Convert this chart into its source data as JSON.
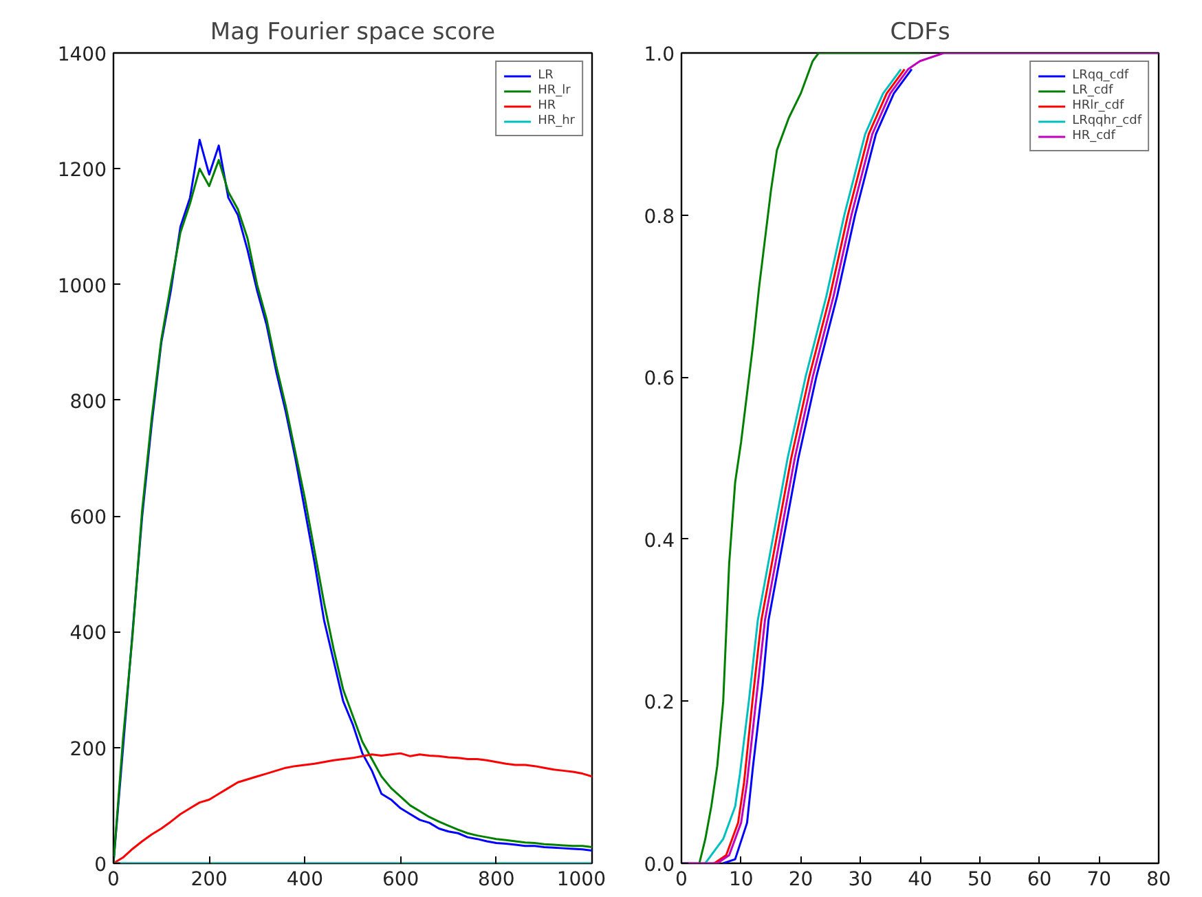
{
  "chart_data": [
    {
      "type": "line",
      "title": "Mag Fourier space score",
      "legend": "top right",
      "grid": false,
      "line_style": "solid",
      "marker": "none",
      "xlim": [
        0,
        1000
      ],
      "xticks": [
        0,
        200,
        400,
        600,
        800,
        1000
      ],
      "ylim": [
        0,
        1400
      ],
      "yticks": [
        0,
        200,
        400,
        600,
        800,
        1000,
        1200,
        1400
      ],
      "x": [
        0,
        20,
        40,
        60,
        80,
        100,
        120,
        140,
        160,
        180,
        200,
        220,
        240,
        260,
        280,
        300,
        320,
        340,
        360,
        380,
        400,
        420,
        440,
        460,
        480,
        500,
        520,
        540,
        560,
        580,
        600,
        620,
        640,
        660,
        680,
        700,
        720,
        740,
        760,
        780,
        800,
        820,
        840,
        860,
        880,
        900,
        920,
        940,
        960,
        980,
        1000
      ],
      "series": [
        {
          "name": "LR",
          "color": "#0000ff",
          "values": [
            0,
            200,
            400,
            600,
            760,
            900,
            990,
            1100,
            1150,
            1250,
            1190,
            1240,
            1150,
            1120,
            1060,
            990,
            930,
            850,
            780,
            700,
            610,
            520,
            420,
            350,
            280,
            240,
            190,
            160,
            120,
            110,
            95,
            85,
            75,
            70,
            60,
            55,
            52,
            45,
            42,
            38,
            35,
            34,
            32,
            30,
            30,
            28,
            27,
            26,
            25,
            24,
            22
          ]
        },
        {
          "name": "HR_lr",
          "color": "#008000",
          "values": [
            0,
            215,
            395,
            610,
            770,
            905,
            1000,
            1090,
            1140,
            1200,
            1170,
            1215,
            1160,
            1130,
            1080,
            1000,
            940,
            860,
            790,
            710,
            630,
            540,
            450,
            370,
            300,
            255,
            210,
            180,
            150,
            130,
            115,
            100,
            90,
            80,
            72,
            65,
            58,
            52,
            48,
            45,
            42,
            40,
            38,
            36,
            35,
            33,
            32,
            31,
            30,
            30,
            28
          ]
        },
        {
          "name": "HR",
          "color": "#ff0000",
          "values": [
            0,
            10,
            25,
            38,
            50,
            60,
            72,
            85,
            95,
            105,
            110,
            120,
            130,
            140,
            145,
            150,
            155,
            160,
            165,
            168,
            170,
            172,
            175,
            178,
            180,
            182,
            185,
            188,
            186,
            188,
            190,
            185,
            188,
            186,
            185,
            183,
            182,
            180,
            180,
            178,
            175,
            172,
            170,
            170,
            168,
            165,
            162,
            160,
            158,
            155,
            150
          ]
        },
        {
          "name": "HR_hr",
          "color": "#00bfbf",
          "values": [
            0,
            0,
            0,
            0,
            0,
            0,
            0,
            0,
            0,
            0,
            0,
            0,
            0,
            0,
            0,
            0,
            0,
            0,
            0,
            0,
            0,
            0,
            0,
            0,
            0,
            0,
            0,
            0,
            0,
            0,
            0,
            0,
            0,
            0,
            0,
            0,
            0,
            0,
            0,
            0,
            0,
            0,
            0,
            0,
            0,
            0,
            0,
            0,
            0,
            0,
            0
          ]
        }
      ]
    },
    {
      "type": "line",
      "title": "CDFs",
      "legend": "top right",
      "grid": false,
      "line_style": "solid",
      "marker": "none",
      "xlim": [
        0,
        80
      ],
      "xticks": [
        0,
        10,
        20,
        30,
        40,
        50,
        60,
        70,
        80
      ],
      "ylim": [
        0,
        1
      ],
      "yticks": [
        {
          "value": 0,
          "label": "0.0"
        },
        {
          "value": 0.2,
          "label": "0.2"
        },
        {
          "value": 0.4,
          "label": "0.4"
        },
        {
          "value": 0.6,
          "label": "0.6"
        },
        {
          "value": 0.8,
          "label": "0.8"
        },
        {
          "value": 1,
          "label": "1.0"
        }
      ],
      "series": [
        {
          "name": "LRqq_cdf",
          "color": "#0000ff",
          "x": [
            7,
            9,
            11,
            12,
            13.6,
            14.6,
            17.1,
            19.6,
            22.6,
            26.1,
            29.1,
            32.6,
            35.6,
            38.6
          ],
          "values": [
            0,
            0.005,
            0.05,
            0.12,
            0.22,
            0.3,
            0.4,
            0.5,
            0.6,
            0.7,
            0.8,
            0.9,
            0.95,
            0.98
          ]
        },
        {
          "name": "LR_cdf",
          "color": "#008000",
          "x": [
            3,
            4,
            5,
            6,
            7,
            8,
            9,
            10,
            11,
            12,
            13,
            14,
            15,
            16,
            18,
            20,
            22,
            23,
            30,
            40
          ],
          "values": [
            0,
            0.03,
            0.07,
            0.12,
            0.2,
            0.37,
            0.47,
            0.52,
            0.58,
            0.64,
            0.71,
            0.77,
            0.83,
            0.88,
            0.92,
            0.95,
            0.99,
            1,
            1,
            1
          ]
        },
        {
          "name": "HRlr_cdf",
          "color": "#ff0000",
          "x": [
            5.5,
            7.5,
            9.5,
            10.5,
            11.9,
            13.4,
            15.9,
            18.4,
            21.4,
            24.9,
            27.9,
            31.4,
            34.4,
            37.4
          ],
          "values": [
            0,
            0.01,
            0.05,
            0.1,
            0.2,
            0.3,
            0.4,
            0.5,
            0.6,
            0.7,
            0.8,
            0.9,
            0.95,
            0.98
          ]
        },
        {
          "name": "LRqqhr_cdf",
          "color": "#00bfbf",
          "x": [
            4,
            5,
            7,
            9,
            9.8,
            11.3,
            12.8,
            15.3,
            17.8,
            20.8,
            24.3,
            27.3,
            30.8,
            33.8,
            36.8
          ],
          "values": [
            0,
            0.01,
            0.03,
            0.07,
            0.11,
            0.2,
            0.3,
            0.4,
            0.5,
            0.6,
            0.7,
            0.8,
            0.9,
            0.95,
            0.98
          ]
        },
        {
          "name": "HR_cdf",
          "color": "#bf00bf",
          "x": [
            0,
            6,
            8,
            10,
            11,
            12.5,
            14,
            16.5,
            19,
            22,
            25.5,
            28.5,
            32,
            35,
            38,
            40,
            44,
            50,
            60,
            70,
            80
          ],
          "values": [
            0,
            0,
            0.01,
            0.05,
            0.1,
            0.2,
            0.3,
            0.4,
            0.5,
            0.6,
            0.7,
            0.8,
            0.9,
            0.95,
            0.98,
            0.99,
            1,
            1,
            1,
            1,
            1
          ]
        }
      ]
    }
  ]
}
